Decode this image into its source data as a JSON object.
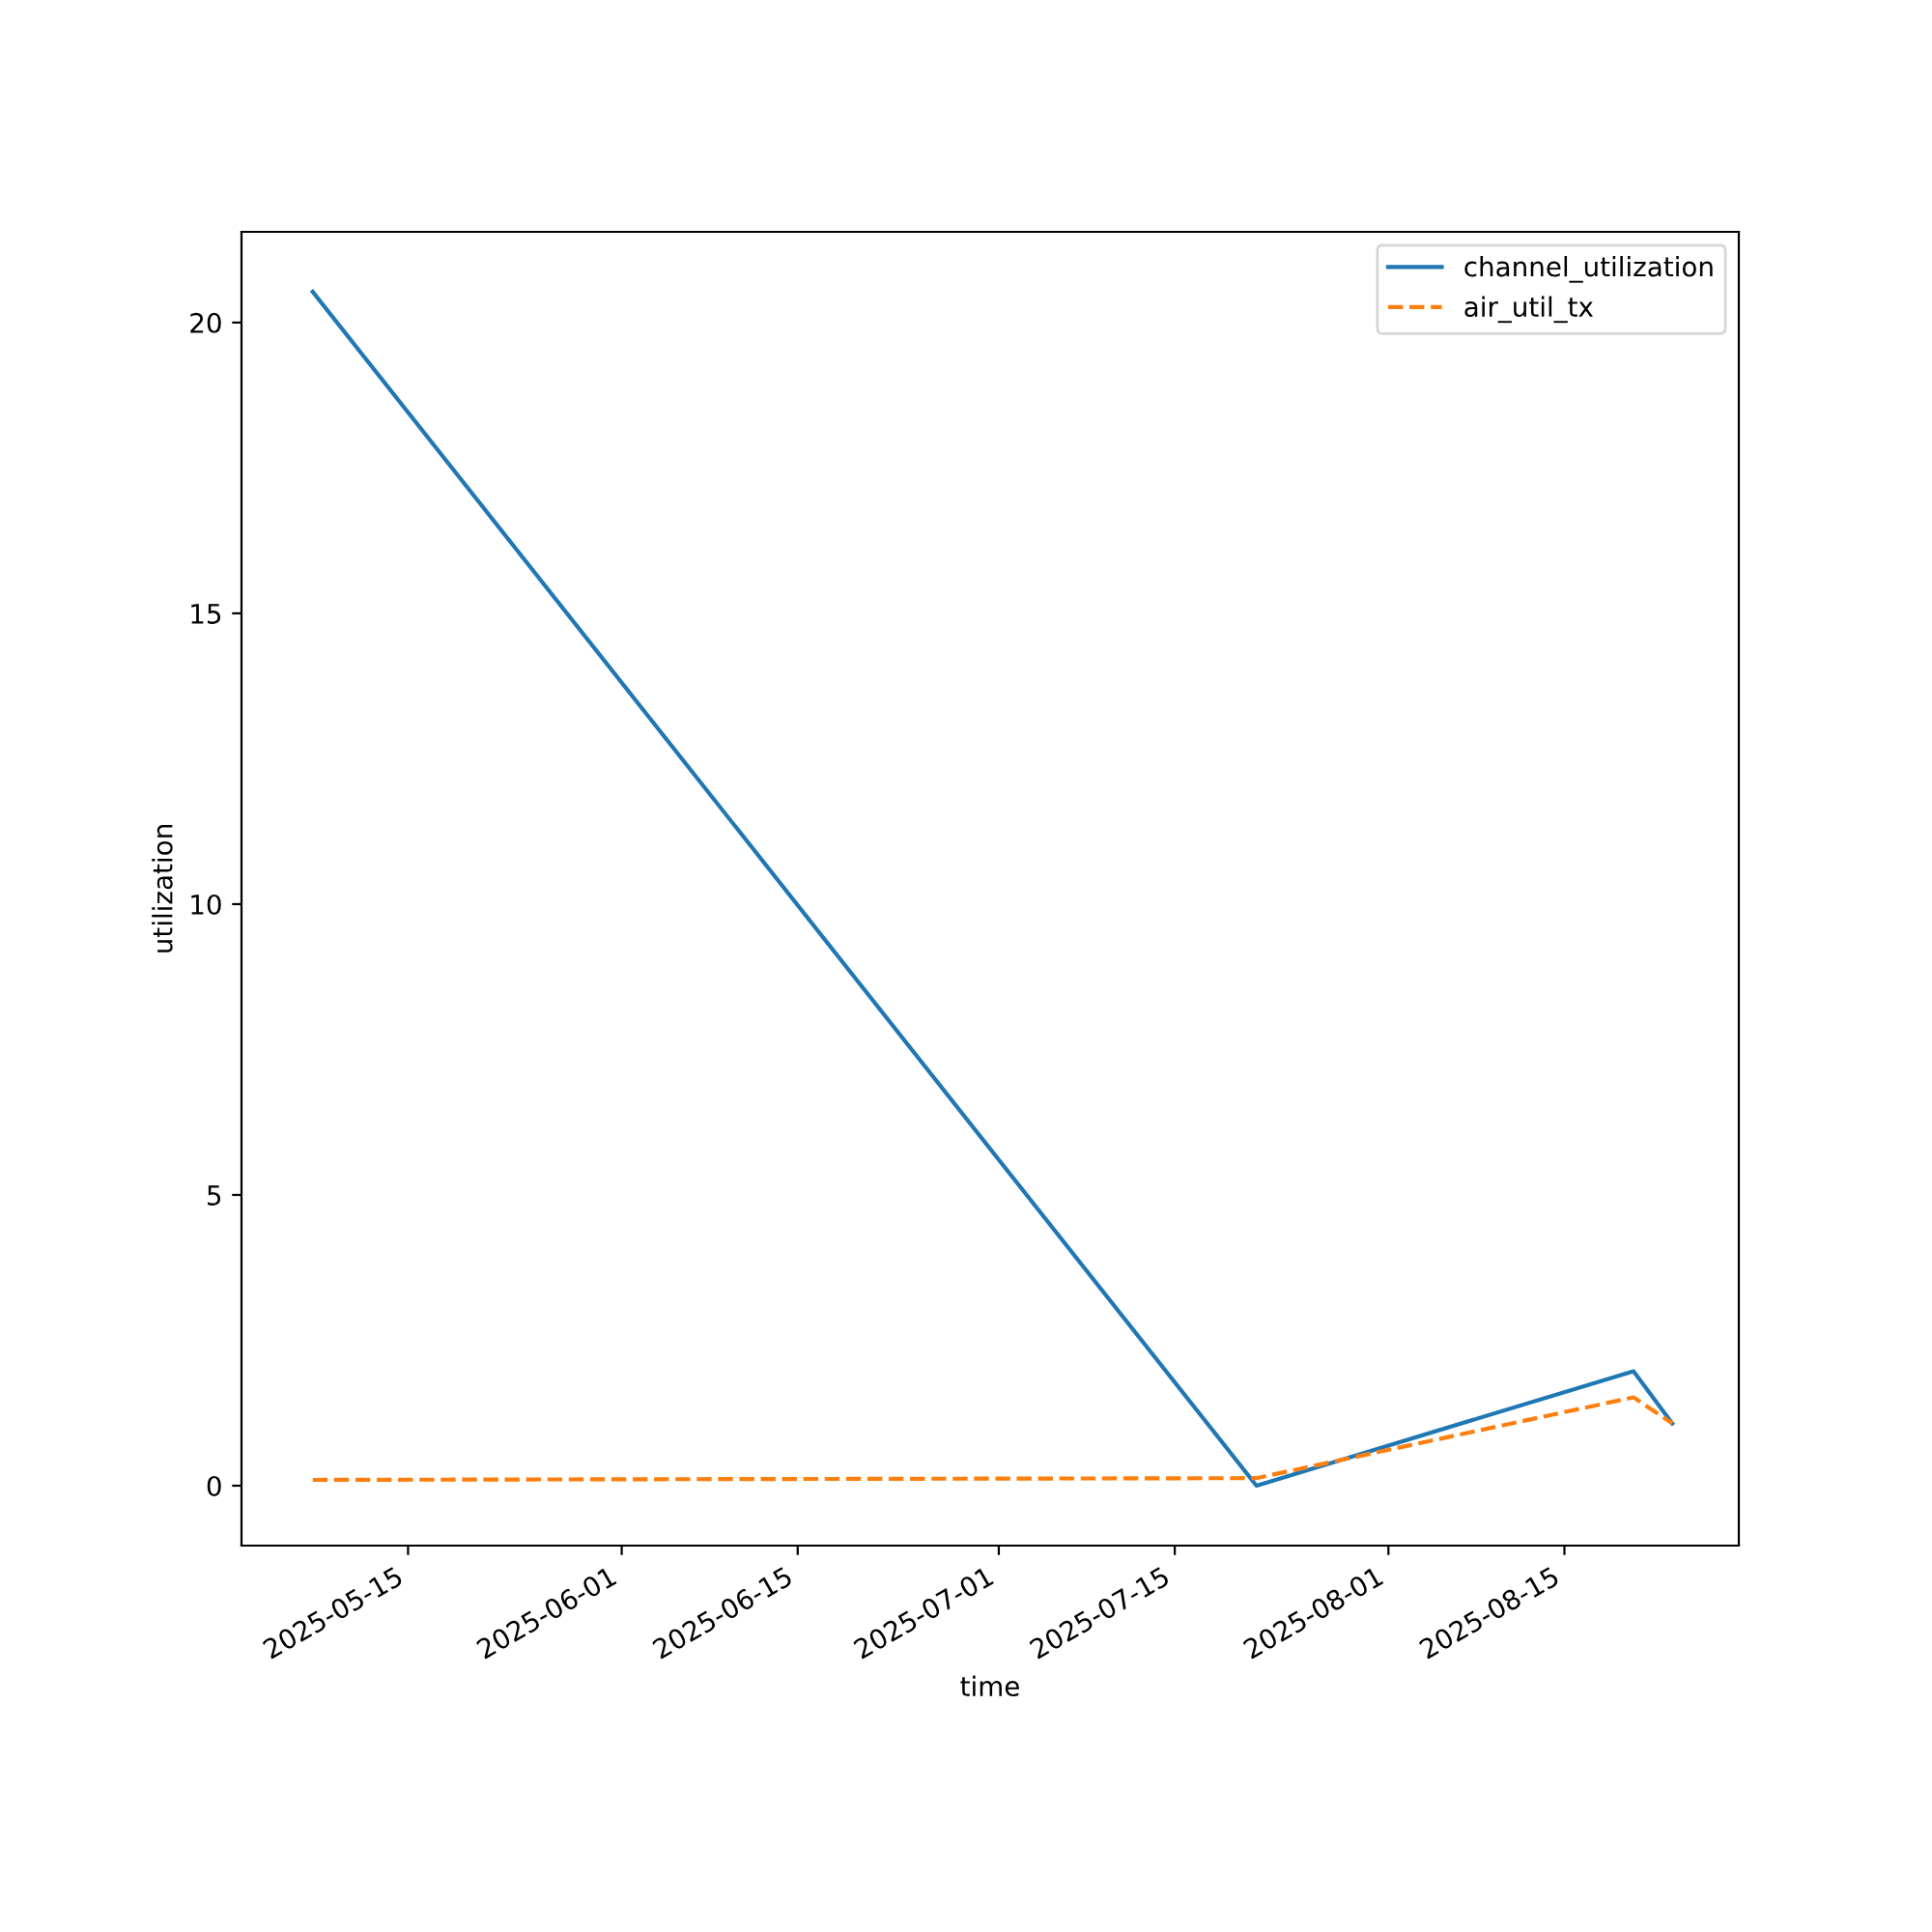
{
  "chart_data": {
    "type": "line",
    "xlabel": "time",
    "ylabel": "utilization",
    "x": [
      "2025-05-07T10:00",
      "2025-07-21T12:00",
      "2025-08-20T12:00",
      "2025-08-23T14:00"
    ],
    "series": [
      {
        "name": "channel_utilization",
        "color": "#1f77b4",
        "line_style": "solid",
        "values": [
          20.53,
          0.0,
          1.97,
          1.07
        ]
      },
      {
        "name": "air_util_tx",
        "color": "#ff7f0e",
        "line_style": "dashed",
        "values": [
          0.1,
          0.13,
          1.52,
          1.07
        ]
      }
    ],
    "xlim": [
      "2025-05-01T18:00",
      "2025-08-28T21:00"
    ],
    "xticks": [
      "2025-05-15",
      "2025-06-01",
      "2025-06-15",
      "2025-07-01",
      "2025-07-15",
      "2025-08-01",
      "2025-08-15"
    ],
    "ylim": [
      -1.03,
      21.56
    ],
    "yticks": [
      0,
      5,
      10,
      15,
      20
    ],
    "legend": "top right",
    "grid": false
  }
}
